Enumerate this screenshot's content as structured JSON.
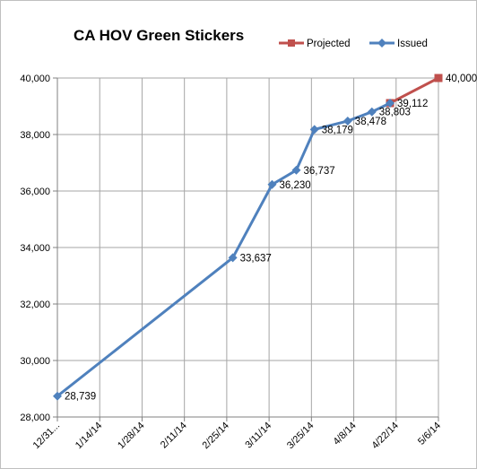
{
  "chart_data": {
    "type": "line",
    "title": "CA HOV Green Stickers",
    "xlabel": "",
    "ylabel": "",
    "ylim": [
      28000,
      40000
    ],
    "y_ticks": [
      "28,000",
      "30,000",
      "32,000",
      "34,000",
      "36,000",
      "38,000",
      "40,000"
    ],
    "x_range": [
      "2013-12-31",
      "2014-05-06"
    ],
    "x_ticks": [
      {
        "date": "2013-12-31",
        "label": "12/31..."
      },
      {
        "date": "2014-01-14",
        "label": "1/14/14"
      },
      {
        "date": "2014-01-28",
        "label": "1/28/14"
      },
      {
        "date": "2014-02-11",
        "label": "2/11/14"
      },
      {
        "date": "2014-02-25",
        "label": "2/25/14"
      },
      {
        "date": "2014-03-11",
        "label": "3/11/14"
      },
      {
        "date": "2014-03-25",
        "label": "3/25/14"
      },
      {
        "date": "2014-04-08",
        "label": "4/8/14"
      },
      {
        "date": "2014-04-22",
        "label": "4/22/14"
      },
      {
        "date": "2014-05-06",
        "label": "5/6/14"
      }
    ],
    "grid": true,
    "legend_position": "top-right",
    "series": [
      {
        "name": "Projected",
        "color": "#c0504d",
        "marker": "square",
        "points": [
          {
            "x": "2014-04-20",
            "y": 39112
          },
          {
            "x": "2014-05-06",
            "y": 40000,
            "label": "40,000"
          }
        ]
      },
      {
        "name": "Issued",
        "color": "#4f81bd",
        "marker": "diamond",
        "points": [
          {
            "x": "2013-12-31",
            "y": 28739,
            "label": "28,739"
          },
          {
            "x": "2014-02-27",
            "y": 33637,
            "label": "33,637"
          },
          {
            "x": "2014-03-12",
            "y": 36230,
            "label": "36,230"
          },
          {
            "x": "2014-03-20",
            "y": 36737,
            "label": "36,737"
          },
          {
            "x": "2014-03-26",
            "y": 38179,
            "label": "38,179"
          },
          {
            "x": "2014-04-06",
            "y": 38478,
            "label": "38,478"
          },
          {
            "x": "2014-04-14",
            "y": 38803,
            "label": "38,803"
          },
          {
            "x": "2014-04-20",
            "y": 39112,
            "label": "39,112"
          }
        ]
      }
    ]
  }
}
